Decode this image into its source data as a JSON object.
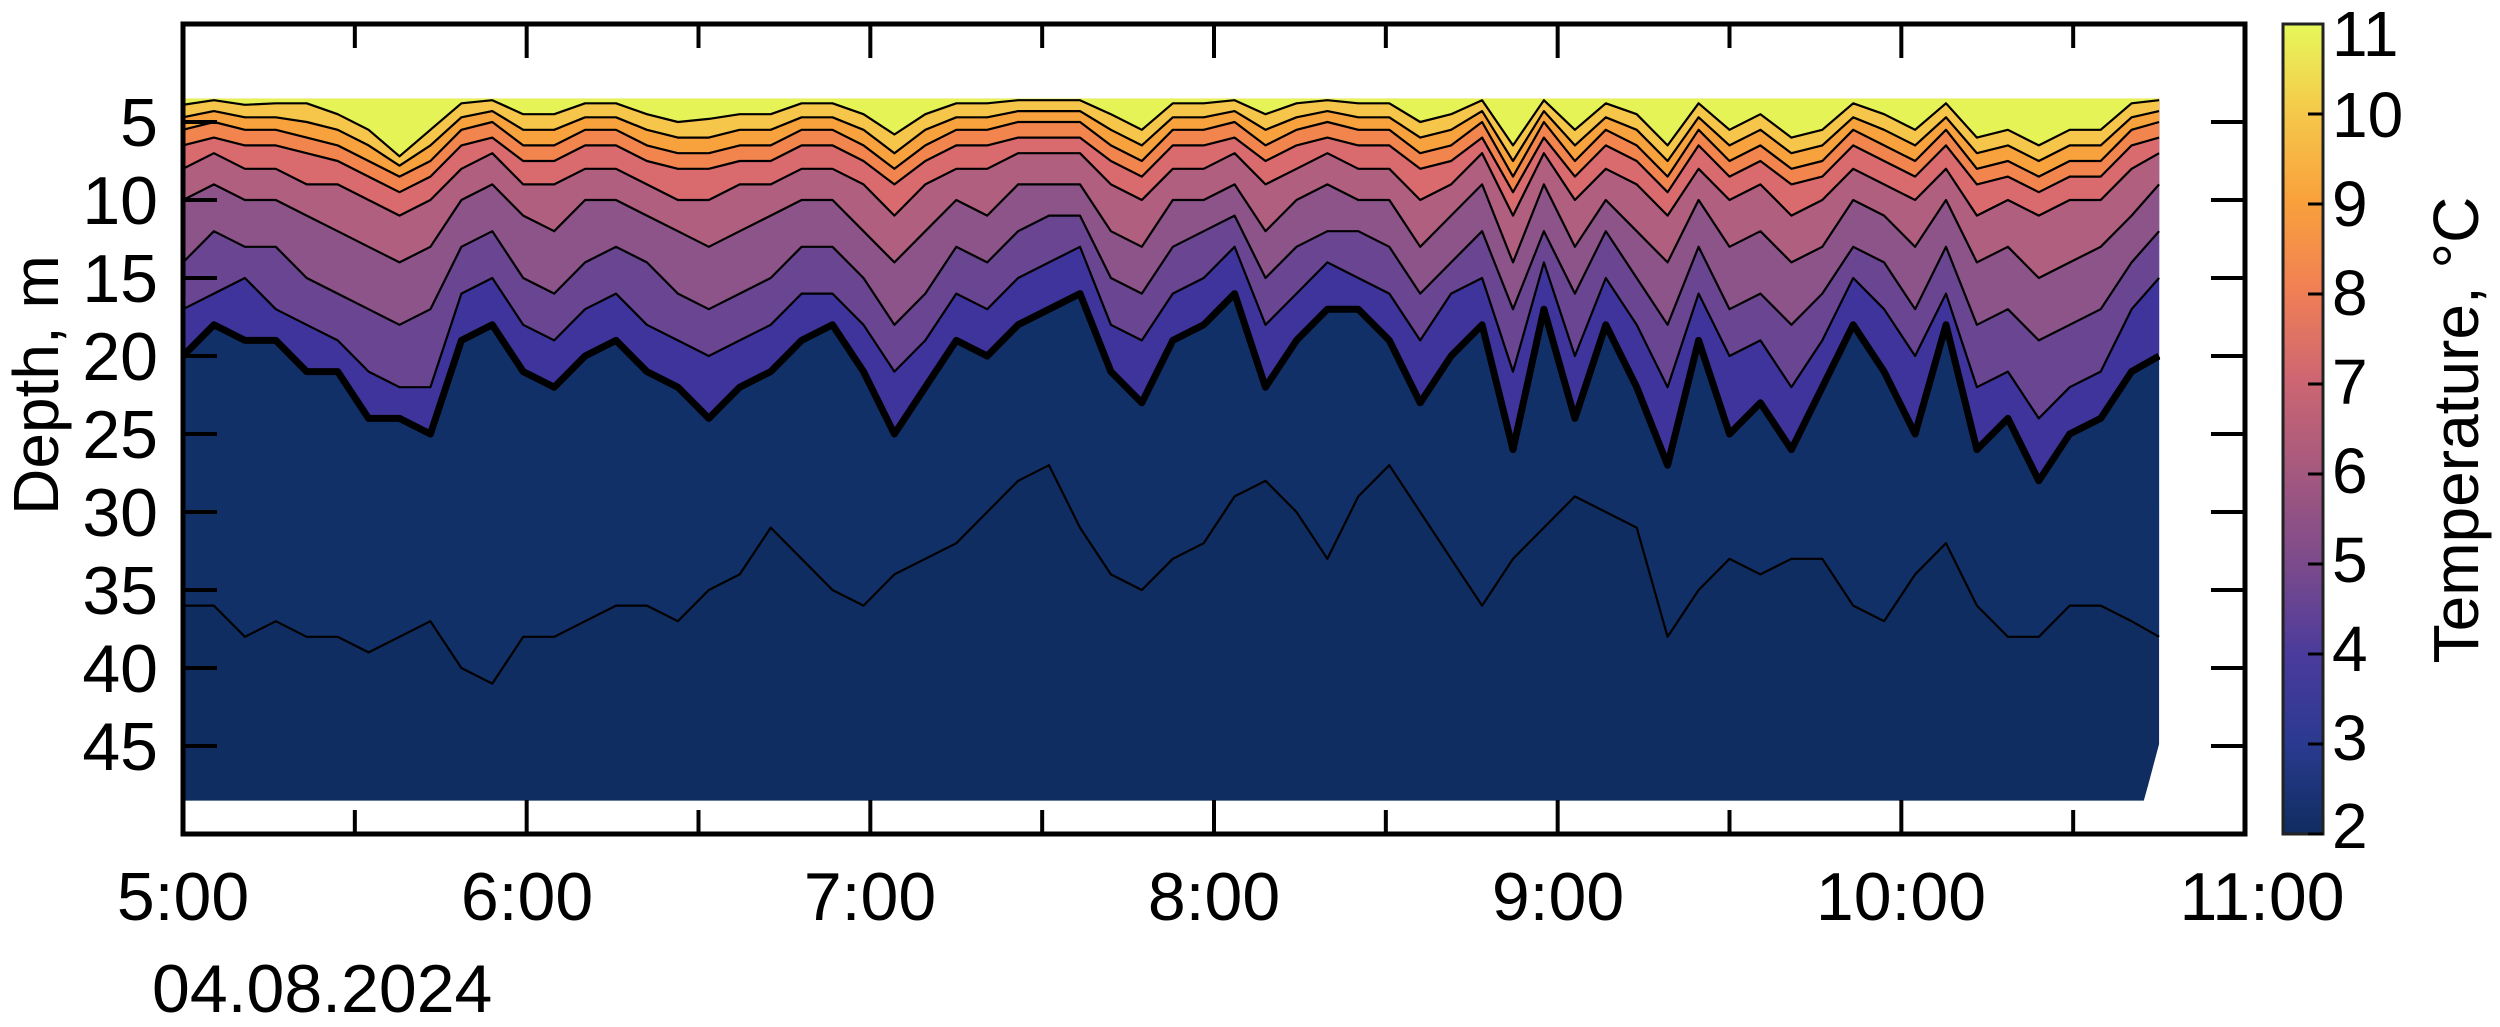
{
  "chart_data": {
    "type": "heatmap",
    "subtype": "filled-contour",
    "title": "",
    "xlabel": "",
    "ylabel": "Depth, m",
    "colorbar_label": "Temperature, °C",
    "date_label": "04.08.2024",
    "x_ticks": [
      "5:00",
      "6:00",
      "7:00",
      "8:00",
      "9:00",
      "10:00",
      "11:00"
    ],
    "x_minor_ticks_minutes": [
      30,
      90,
      150,
      210,
      270,
      330
    ],
    "y_ticks": [
      5,
      10,
      15,
      20,
      25,
      30,
      35,
      40,
      45
    ],
    "y_range": [
      1.5,
      51
    ],
    "y_inverted": true,
    "x_range_hours": [
      5.0,
      11.0
    ],
    "data_x_range_hours": [
      5.0,
      10.75
    ],
    "data_depth_range": [
      3.5,
      48.5
    ],
    "colorbar": {
      "min": 2,
      "max": 11,
      "ticks": [
        2,
        3,
        4,
        5,
        6,
        7,
        8,
        9,
        10,
        11
      ],
      "colormap": "plasma-like (navy-indigo-purple-rose-orange-yellow)"
    },
    "contour_levels": [
      2.5,
      3,
      3.5,
      4,
      5,
      6,
      7,
      8,
      9,
      10
    ],
    "bold_contour_level": 3,
    "level_colors": {
      "below_2.5": "#0f2d60",
      "2.5_3": "#123068",
      "3_3.5": "#3f349b",
      "3.5_4": "#6a4592",
      "4_5": "#8d5489",
      "5_6": "#b05f7e",
      "6_7": "#d96b6e",
      "7_8": "#f2854e",
      "8_9": "#f8a23e",
      "9_10": "#f6c64a",
      "above_10": "#e6f356"
    },
    "time_hours": [
      5.0,
      5.09,
      5.18,
      5.27,
      5.36,
      5.45,
      5.54,
      5.63,
      5.72,
      5.81,
      5.9,
      5.99,
      6.08,
      6.17,
      6.26,
      6.35,
      6.44,
      6.53,
      6.62,
      6.71,
      6.8,
      6.89,
      6.98,
      7.07,
      7.16,
      7.25,
      7.34,
      7.43,
      7.52,
      7.61,
      7.7,
      7.79,
      7.88,
      7.97,
      8.06,
      8.15,
      8.24,
      8.33,
      8.42,
      8.51,
      8.6,
      8.69,
      8.78,
      8.87,
      8.96,
      9.05,
      9.14,
      9.23,
      9.32,
      9.41,
      9.5,
      9.59,
      9.68,
      9.77,
      9.86,
      9.95,
      10.04,
      10.13,
      10.22,
      10.31,
      10.4,
      10.49,
      10.58,
      10.67,
      10.75
    ],
    "series": [
      {
        "name": "isotherm_2.5C_depth_m",
        "values": [
          36,
          36,
          38,
          37,
          38,
          38,
          39,
          38,
          37,
          40,
          41,
          38,
          38,
          37,
          36,
          36,
          37,
          35,
          34,
          31,
          33,
          35,
          36,
          34,
          33,
          32,
          30,
          28,
          27,
          31,
          34,
          35,
          33,
          32,
          29,
          28,
          30,
          33,
          29,
          27,
          30,
          33,
          36,
          33,
          31,
          29,
          30,
          31,
          38,
          35,
          33,
          34,
          33,
          33,
          36,
          37,
          34,
          32,
          36,
          38,
          38,
          36,
          36,
          37,
          38
        ]
      },
      {
        "name": "isotherm_3C_depth_m",
        "values": [
          20,
          18,
          19,
          19,
          21,
          21,
          24,
          24,
          25,
          19,
          18,
          21,
          22,
          20,
          19,
          21,
          22,
          24,
          22,
          21,
          19,
          18,
          21,
          25,
          22,
          19,
          20,
          18,
          17,
          16,
          21,
          23,
          19,
          18,
          16,
          22,
          19,
          17,
          17,
          19,
          23,
          20,
          18,
          26,
          17,
          24,
          18,
          22,
          27,
          19,
          25,
          23,
          26,
          22,
          18,
          21,
          25,
          18,
          26,
          24,
          28,
          25,
          24,
          21,
          20
        ]
      },
      {
        "name": "isotherm_3.5C_depth_m",
        "values": [
          17,
          16,
          15,
          17,
          18,
          19,
          21,
          22,
          22,
          16,
          15,
          18,
          19,
          17,
          16,
          18,
          19,
          20,
          19,
          18,
          16,
          16,
          18,
          21,
          19,
          16,
          17,
          15,
          14,
          13,
          18,
          19,
          16,
          15,
          13,
          18,
          16,
          14,
          15,
          16,
          19,
          16,
          15,
          21,
          14,
          20,
          15,
          18,
          22,
          16,
          20,
          19,
          22,
          19,
          15,
          17,
          20,
          16,
          22,
          21,
          24,
          22,
          21,
          17,
          15
        ]
      },
      {
        "name": "isotherm_4C_depth_m",
        "values": [
          14,
          12,
          13,
          13,
          15,
          16,
          17,
          18,
          17,
          13,
          12,
          15,
          16,
          14,
          13,
          14,
          16,
          17,
          16,
          15,
          13,
          13,
          15,
          18,
          16,
          13,
          14,
          12,
          11,
          11,
          15,
          16,
          13,
          12,
          11,
          15,
          13,
          12,
          12,
          13,
          16,
          14,
          12,
          17,
          12,
          16,
          12,
          15,
          18,
          13,
          17,
          16,
          18,
          16,
          13,
          14,
          17,
          13,
          18,
          17,
          19,
          18,
          17,
          14,
          12
        ]
      },
      {
        "name": "isotherm_5C_depth_m",
        "values": [
          10,
          9,
          10,
          10,
          11,
          12,
          13,
          14,
          13,
          10,
          9,
          11,
          12,
          10,
          10,
          11,
          12,
          13,
          12,
          11,
          10,
          10,
          12,
          14,
          12,
          10,
          11,
          9,
          9,
          9,
          12,
          13,
          10,
          10,
          9,
          12,
          10,
          9,
          10,
          10,
          13,
          11,
          9,
          14,
          9,
          13,
          10,
          12,
          14,
          10,
          13,
          12,
          14,
          13,
          10,
          11,
          13,
          10,
          14,
          13,
          15,
          14,
          13,
          11,
          9
        ]
      },
      {
        "name": "isotherm_6C_depth_m",
        "values": [
          8,
          7,
          8,
          8,
          9,
          9,
          10,
          11,
          10,
          8,
          7,
          9,
          9,
          8,
          8,
          9,
          10,
          10,
          9,
          9,
          8,
          8,
          9,
          11,
          9,
          8,
          8,
          7,
          7,
          7,
          9,
          10,
          8,
          8,
          7,
          9,
          8,
          7,
          8,
          8,
          10,
          9,
          7,
          11,
          7,
          10,
          8,
          9,
          11,
          8,
          10,
          9,
          11,
          10,
          8,
          9,
          10,
          8,
          11,
          10,
          11,
          10,
          10,
          8,
          7
        ]
      },
      {
        "name": "isotherm_7C_depth_m",
        "values": [
          6.5,
          6,
          6.5,
          6.5,
          7,
          7.5,
          8.5,
          9.5,
          8.5,
          6.5,
          6,
          7.5,
          7.5,
          6.5,
          6.5,
          7.5,
          8,
          8,
          7.5,
          7.5,
          6.5,
          6.5,
          7.5,
          9,
          7.5,
          6.5,
          6.5,
          6,
          6,
          6,
          7.5,
          8.5,
          6.5,
          6.5,
          6,
          7.5,
          6.5,
          6,
          6.5,
          6.5,
          8,
          7.5,
          6,
          9.5,
          6,
          8.5,
          6.5,
          7.5,
          9.5,
          6.5,
          8.5,
          7.5,
          9,
          8.5,
          6.5,
          7.5,
          8.5,
          6.5,
          9,
          8.5,
          9.5,
          8.5,
          8.5,
          6.5,
          6
        ]
      },
      {
        "name": "isotherm_8C_depth_m",
        "values": [
          5.5,
          5,
          5.5,
          5.5,
          6,
          6.5,
          7.5,
          8.5,
          7.5,
          5.5,
          5,
          6.5,
          6.5,
          5.5,
          5.5,
          6.5,
          7,
          7,
          6.5,
          6.5,
          5.5,
          5.5,
          6.5,
          8,
          6.5,
          5.5,
          5.5,
          5,
          5,
          5,
          6.5,
          7.5,
          5.5,
          5.5,
          5,
          6.5,
          5.5,
          5,
          5.5,
          5.5,
          7,
          6.5,
          5,
          8.5,
          5,
          7.5,
          5.5,
          6.5,
          8.5,
          5.5,
          7.5,
          6.5,
          8,
          7.5,
          5.5,
          6.5,
          7.5,
          5.5,
          8,
          7.5,
          8.5,
          7.5,
          7.5,
          5.5,
          5
        ]
      },
      {
        "name": "isotherm_9C_depth_m",
        "values": [
          4.7,
          4.3,
          4.7,
          4.7,
          5,
          5.5,
          6.5,
          7.8,
          6.5,
          4.7,
          4.3,
          5.5,
          5.5,
          4.7,
          4.7,
          5.5,
          6,
          6,
          5.5,
          5.5,
          4.7,
          4.7,
          5.5,
          7,
          5.5,
          4.7,
          4.7,
          4.3,
          4.3,
          4.3,
          5.5,
          6.5,
          4.7,
          4.7,
          4.3,
          5.5,
          4.7,
          4.3,
          4.7,
          4.7,
          6,
          5.5,
          4.3,
          7.5,
          4.3,
          6.5,
          4.7,
          5.5,
          7.5,
          4.7,
          6.5,
          5.5,
          7,
          6.5,
          4.7,
          5.5,
          6.5,
          4.7,
          7,
          6.5,
          7.5,
          6.5,
          6.5,
          4.7,
          4.3
        ]
      },
      {
        "name": "isotherm_10C_depth_m",
        "values": [
          3.9,
          3.6,
          3.9,
          3.8,
          3.8,
          4.5,
          5.5,
          7.2,
          5.5,
          3.8,
          3.6,
          4.5,
          4.5,
          3.8,
          3.8,
          4.5,
          5,
          4.8,
          4.5,
          4.5,
          3.8,
          3.8,
          4.5,
          5.8,
          4.5,
          3.8,
          3.8,
          3.6,
          3.6,
          3.6,
          4.5,
          5.5,
          3.8,
          3.8,
          3.6,
          4.5,
          3.8,
          3.6,
          3.8,
          3.8,
          5,
          4.5,
          3.6,
          6.5,
          3.6,
          5.5,
          3.8,
          4.5,
          6.5,
          3.8,
          5.5,
          4.5,
          6,
          5.5,
          3.8,
          4.5,
          5.5,
          3.8,
          6,
          5.5,
          6.5,
          5.5,
          5.5,
          3.8,
          3.6
        ]
      }
    ]
  },
  "axes": {
    "ylabel": "Depth, m",
    "date": "04.08.2024",
    "colorbar_title": "Temperature, °C",
    "x_labels": [
      "5:00",
      "6:00",
      "7:00",
      "8:00",
      "9:00",
      "10:00",
      "11:00"
    ],
    "y_labels": [
      "5",
      "10",
      "15",
      "20",
      "25",
      "30",
      "35",
      "40",
      "45"
    ],
    "cbar_labels": [
      "11",
      "10",
      "9",
      "8",
      "7",
      "6",
      "5",
      "4",
      "3",
      "2"
    ]
  }
}
